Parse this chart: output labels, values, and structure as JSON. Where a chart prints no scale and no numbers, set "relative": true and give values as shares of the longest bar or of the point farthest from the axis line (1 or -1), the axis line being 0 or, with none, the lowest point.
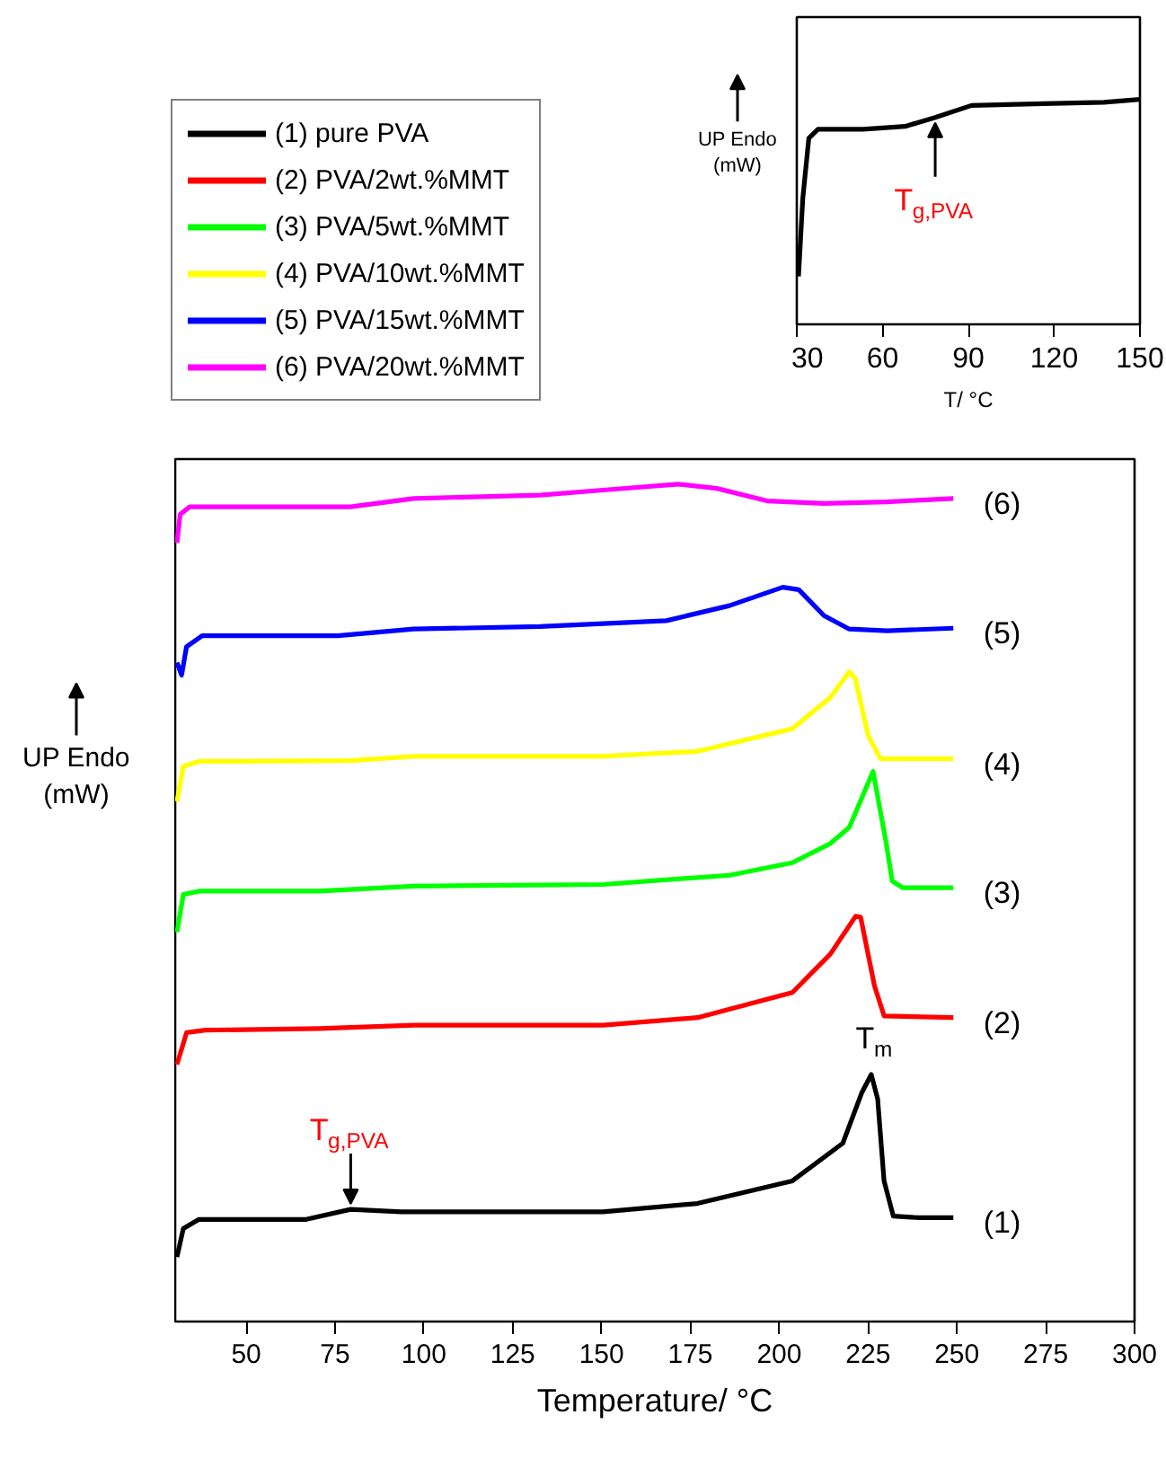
{
  "chart_data": [
    {
      "type": "line",
      "relative": true,
      "xlabel": "Temperature/ °C",
      "ylabel": "UP Endo\n(mW)",
      "xlim": [
        30,
        300
      ],
      "xticks": [
        50,
        75,
        100,
        125,
        150,
        175,
        200,
        225,
        250,
        275,
        300
      ],
      "legend": "top left",
      "line_style": "solid",
      "marker": "none",
      "series": [
        {
          "name": "(1) pure PVA",
          "color": "#000000",
          "x": [
            30.5,
            32.3,
            36.7,
            66.9,
            79.4,
            93.6,
            150.4,
            177.0,
            203.7,
            217.9,
            223.2,
            225.9,
            227.7,
            229.5,
            232.1,
            239.2,
            249
          ],
          "values": [
            0.077,
            0.111,
            0.122,
            0.122,
            0.134,
            0.131,
            0.131,
            0.141,
            0.168,
            0.213,
            0.273,
            0.295,
            0.266,
            0.168,
            0.126,
            0.124,
            0.124
          ]
        },
        {
          "name": "(2) PVA/2wt.%MMT",
          "color": "#ff0000",
          "x": [
            30.5,
            33.2,
            38.5,
            70.5,
            97.1,
            150.4,
            177.0,
            203.7,
            214.4,
            221.5,
            222.9,
            226.8,
            229.5,
            249
          ],
          "values": [
            0.307,
            0.345,
            0.348,
            0.35,
            0.354,
            0.354,
            0.363,
            0.393,
            0.439,
            0.484,
            0.483,
            0.401,
            0.365,
            0.363
          ]
        },
        {
          "name": "(3) PVA/5wt.%MMT",
          "color": "#00ff00",
          "x": [
            30.5,
            32.3,
            36.7,
            70.5,
            97.1,
            150.4,
            186.0,
            203.7,
            214.4,
            219.7,
            226.4,
            230.0,
            231.8,
            234.8,
            249
          ],
          "values": [
            0.465,
            0.51,
            0.514,
            0.514,
            0.52,
            0.522,
            0.533,
            0.548,
            0.571,
            0.59,
            0.657,
            0.574,
            0.526,
            0.518,
            0.518
          ]
        },
        {
          "name": "(4) PVA/10wt.%MMT",
          "color": "#ffff00",
          "x": [
            30.5,
            32.3,
            36.7,
            79.4,
            97.1,
            150.4,
            177.0,
            203.7,
            214.3,
            219.7,
            221.4,
            225.0,
            228.5,
            249
          ],
          "values": [
            0.621,
            0.663,
            0.669,
            0.67,
            0.675,
            0.675,
            0.681,
            0.708,
            0.745,
            0.776,
            0.768,
            0.7,
            0.672,
            0.672
          ]
        },
        {
          "name": "(5) PVA/15wt.%MMT",
          "color": "#0000ff",
          "x": [
            30.5,
            31.8,
            33.2,
            37.6,
            75.8,
            97.1,
            132.7,
            168.2,
            186.0,
            201.0,
            205.5,
            212.6,
            219.7,
            230.4,
            249
          ],
          "values": [
            0.787,
            0.772,
            0.806,
            0.819,
            0.819,
            0.827,
            0.83,
            0.837,
            0.855,
            0.877,
            0.874,
            0.843,
            0.827,
            0.825,
            0.828
          ]
        },
        {
          "name": "(6) PVA/20wt.%MMT",
          "color": "#ff00ff",
          "x": [
            30.5,
            31.4,
            34.1,
            43.9,
            79.4,
            97.1,
            132.7,
            150.4,
            171.7,
            182.4,
            196.6,
            212.6,
            230.4,
            249
          ],
          "values": [
            0.93,
            0.964,
            0.973,
            0.973,
            0.973,
            0.983,
            0.987,
            0.993,
            1.0,
            0.995,
            0.98,
            0.977,
            0.979,
            0.983
          ]
        }
      ],
      "annotations": [
        {
          "text": "T$_{g,PVA}$",
          "x": 79.4,
          "y": 0.134
        },
        {
          "text": "T$_{m}$",
          "x": 225.9,
          "y": 0.295
        },
        {
          "text": "(1)",
          "x": 249,
          "y": 0.124
        },
        {
          "text": "(2)",
          "x": 249,
          "y": 0.363
        },
        {
          "text": "(3)",
          "x": 249,
          "y": 0.518
        },
        {
          "text": "(4)",
          "x": 249,
          "y": 0.672
        },
        {
          "text": "(5)",
          "x": 249,
          "y": 0.828
        },
        {
          "text": "(6)",
          "x": 249,
          "y": 0.983
        }
      ]
    },
    {
      "type": "line",
      "relative": true,
      "xlabel": "T/ °C",
      "ylabel": "UP Endo\n(mW)",
      "xlim": [
        30,
        150
      ],
      "xticks": [
        30,
        60,
        90,
        120,
        150
      ],
      "line_style": "solid",
      "marker": "none",
      "series": [
        {
          "color": "#000000",
          "x": [
            30.6,
            32.1,
            34.2,
            37.4,
            53.2,
            67.9,
            78.4,
            91.1,
            116.3,
            137.4,
            150
          ],
          "values": [
            0.213,
            0.56,
            0.827,
            0.867,
            0.867,
            0.88,
            0.92,
            0.973,
            0.981,
            0.987,
            1.0
          ]
        }
      ],
      "annotations": [
        {
          "text": "T$_{g,PVA}$",
          "x": 78.4,
          "y": 0.92
        }
      ]
    }
  ]
}
